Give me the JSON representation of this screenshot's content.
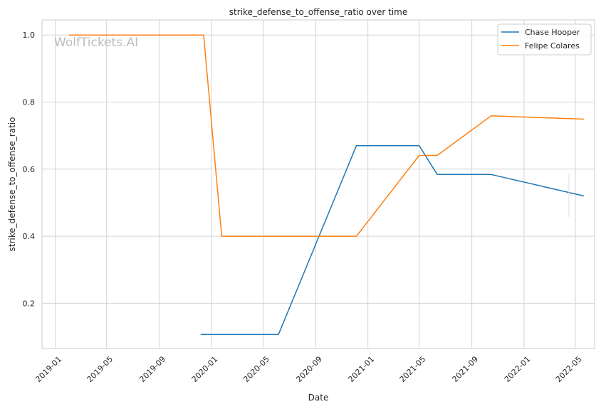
{
  "watermark": "WolfTickets.AI",
  "chart_data": {
    "type": "line",
    "title": "strike_defense_to_offense_ratio over time",
    "xlabel": "Date",
    "ylabel": "strike_defense_to_offense_ratio",
    "x_ticks": [
      "2019-01",
      "2019-05",
      "2019-09",
      "2020-01",
      "2020-05",
      "2020-09",
      "2021-01",
      "2021-05",
      "2021-09",
      "2022-01",
      "2022-05"
    ],
    "y_ticks": [
      0.2,
      0.4,
      0.6,
      0.8,
      1.0
    ],
    "xlim": [
      "2018-12-01",
      "2022-06-15"
    ],
    "ylim": [
      0.065,
      1.045
    ],
    "grid": true,
    "legend_position": "top-right",
    "series": [
      {
        "name": "Chase Hooper",
        "color": "#1f77b4",
        "points": [
          {
            "x": "2019-12-07",
            "y": 0.107
          },
          {
            "x": "2020-06-06",
            "y": 0.107
          },
          {
            "x": "2020-12-05",
            "y": 0.67
          },
          {
            "x": "2021-05-01",
            "y": 0.67
          },
          {
            "x": "2021-06-12",
            "y": 0.584
          },
          {
            "x": "2021-10-16",
            "y": 0.584
          },
          {
            "x": "2022-05-21",
            "y": 0.52
          }
        ]
      },
      {
        "name": "Felipe Colares",
        "color": "#ff7f0e",
        "points": [
          {
            "x": "2019-02-02",
            "y": 1.0
          },
          {
            "x": "2019-12-14",
            "y": 1.0
          },
          {
            "x": "2020-01-25",
            "y": 0.4
          },
          {
            "x": "2020-12-05",
            "y": 0.4
          },
          {
            "x": "2021-05-01",
            "y": 0.641
          },
          {
            "x": "2021-06-12",
            "y": 0.641
          },
          {
            "x": "2021-10-16",
            "y": 0.759
          },
          {
            "x": "2022-05-21",
            "y": 0.749
          }
        ]
      }
    ]
  }
}
